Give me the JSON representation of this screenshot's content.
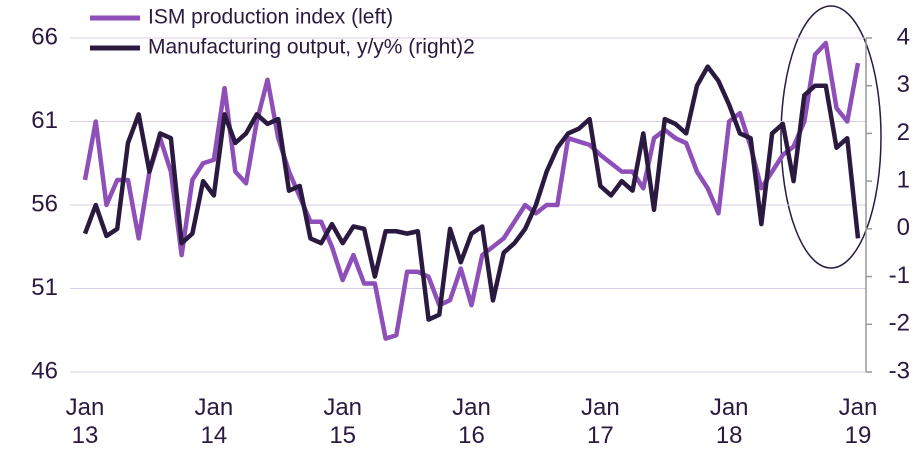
{
  "chart_data": {
    "type": "line",
    "categories": [
      "Jan 13",
      null,
      null,
      null,
      null,
      null,
      null,
      null,
      null,
      null,
      null,
      null,
      "Jan 14",
      null,
      null,
      null,
      null,
      null,
      null,
      null,
      null,
      null,
      null,
      null,
      "Jan 15",
      null,
      null,
      null,
      null,
      null,
      null,
      null,
      null,
      null,
      null,
      null,
      "Jan 16",
      null,
      null,
      null,
      null,
      null,
      null,
      null,
      null,
      null,
      null,
      null,
      "Jan 17",
      null,
      null,
      null,
      null,
      null,
      null,
      null,
      null,
      null,
      null,
      null,
      "Jan 18",
      null,
      null,
      null,
      null,
      null,
      null,
      null,
      null,
      null,
      null,
      null,
      "Jan 19"
    ],
    "series": [
      {
        "name": "ISM production index (left)",
        "color": "#8e4fb8",
        "axis": "y",
        "values": [
          57.5,
          61,
          56,
          57.5,
          57.5,
          54,
          58,
          60,
          58,
          53,
          57.5,
          58.5,
          58.7,
          63,
          58,
          57.3,
          61,
          63.5,
          60,
          58,
          56.5,
          55,
          55,
          53.5,
          51.5,
          53,
          51.3,
          51.3,
          48,
          48.2,
          52,
          52,
          51.7,
          50,
          50.3,
          52.2,
          50,
          53,
          53.5,
          54,
          55,
          56,
          55.5,
          56,
          56,
          60,
          59.8,
          59.6,
          59,
          58.5,
          58,
          58,
          57,
          60,
          60.5,
          60,
          59.7,
          58,
          57,
          55.5,
          61,
          61.5,
          59.5,
          57,
          58,
          59,
          59.5,
          61,
          65,
          65.7,
          61.8,
          61,
          64.5
        ]
      },
      {
        "name": "Manufacturing output, y/y% (right)2",
        "color": "#2a1a40",
        "axis": "y2",
        "values": [
          -0.1,
          0.5,
          -0.15,
          0,
          1.8,
          2.4,
          1.2,
          2,
          1.9,
          -0.3,
          -0.1,
          1,
          0.7,
          2.4,
          1.8,
          2,
          2.4,
          2.2,
          2.3,
          0.8,
          0.9,
          -0.2,
          -0.3,
          0.1,
          -0.3,
          0.05,
          0,
          -1,
          -0.05,
          -0.05,
          -0.1,
          -0.05,
          -1.9,
          -1.8,
          0,
          -0.7,
          -0.1,
          0.05,
          -1.5,
          -0.5,
          -0.3,
          0,
          0.5,
          1.2,
          1.7,
          2,
          2.1,
          2.3,
          0.9,
          0.7,
          1,
          0.8,
          2,
          0.4,
          2.3,
          2.2,
          2,
          3,
          3.4,
          3.1,
          2.6,
          2,
          1.9,
          0.1,
          2,
          2.2,
          1,
          2.8,
          3,
          3,
          1.7,
          1.9,
          -0.2
        ]
      }
    ],
    "ylim": [
      46,
      66
    ],
    "yticks": [
      46,
      51,
      56,
      61,
      66
    ],
    "y2lim": [
      -3,
      4
    ],
    "y2ticks": [
      -3,
      -2,
      -1,
      0,
      1,
      2,
      3,
      4
    ],
    "grid": true,
    "legend": "top-left"
  }
}
